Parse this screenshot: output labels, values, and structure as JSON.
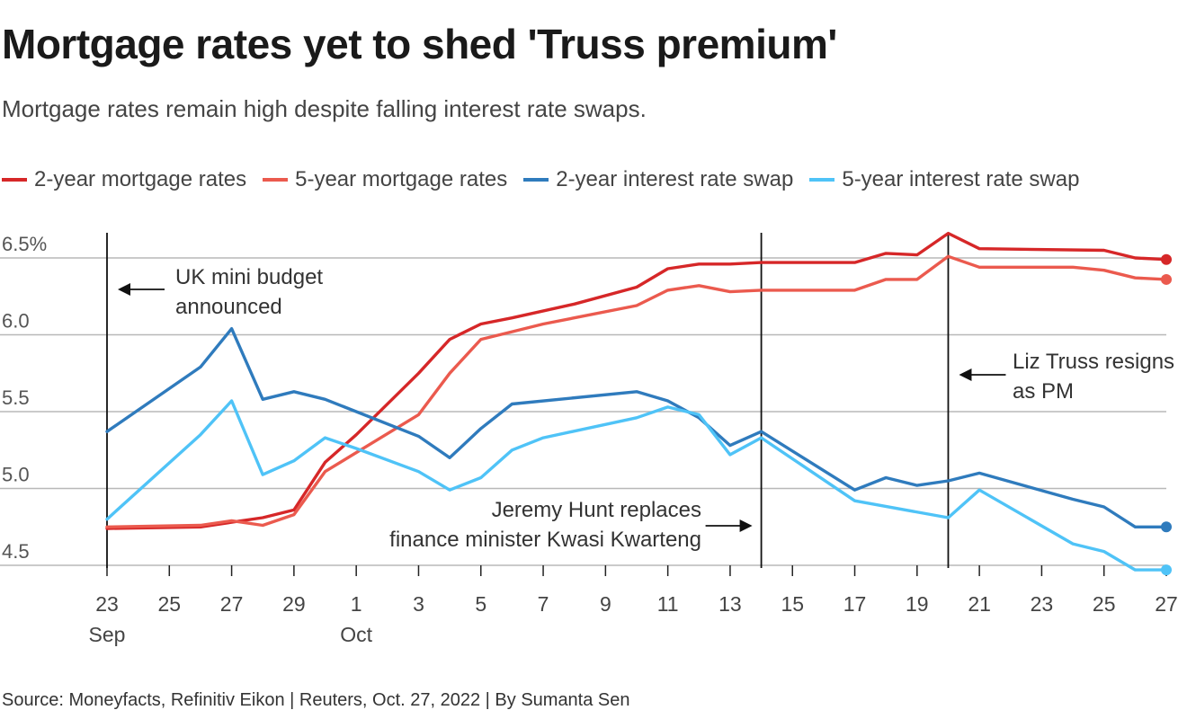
{
  "header": {
    "title": "Mortgage rates yet to shed 'Truss premium'",
    "subtitle": "Mortgage rates remain high despite falling interest rate swaps."
  },
  "footer": {
    "source": "Source: Moneyfacts, Refinitiv Eikon | Reuters, Oct. 27, 2022 | By Sumanta Sen"
  },
  "chart_data": {
    "type": "line",
    "title": "Mortgage rates yet to shed 'Truss premium'",
    "xlabel": "",
    "ylabel": "",
    "ylim": [
      4.5,
      6.5
    ],
    "xlim": [
      0,
      34
    ],
    "x_index_note": "0 = Sep 23, 2022 ... 34 = Oct 27, 2022",
    "y_ticks": [
      {
        "value": 4.5,
        "label": "4.5"
      },
      {
        "value": 5.0,
        "label": "5.0"
      },
      {
        "value": 5.5,
        "label": "5.5"
      },
      {
        "value": 6.0,
        "label": "6.0"
      },
      {
        "value": 6.5,
        "label": "6.5%"
      }
    ],
    "x_ticks": [
      {
        "x": 0,
        "label": "23",
        "sub": "Sep"
      },
      {
        "x": 2,
        "label": "25"
      },
      {
        "x": 4,
        "label": "27"
      },
      {
        "x": 6,
        "label": "29"
      },
      {
        "x": 8,
        "label": "1",
        "sub": "Oct"
      },
      {
        "x": 10,
        "label": "3"
      },
      {
        "x": 12,
        "label": "5"
      },
      {
        "x": 14,
        "label": "7"
      },
      {
        "x": 16,
        "label": "9"
      },
      {
        "x": 18,
        "label": "11"
      },
      {
        "x": 20,
        "label": "13"
      },
      {
        "x": 22,
        "label": "15"
      },
      {
        "x": 24,
        "label": "17"
      },
      {
        "x": 26,
        "label": "19"
      },
      {
        "x": 28,
        "label": "21"
      },
      {
        "x": 30,
        "label": "23"
      },
      {
        "x": 32,
        "label": "25"
      },
      {
        "x": 34,
        "label": "27"
      }
    ],
    "series": [
      {
        "name": "2-year mortgage rates",
        "color": "#d62728",
        "end_marker": true,
        "points": [
          [
            0,
            4.74
          ],
          [
            3,
            4.75
          ],
          [
            4,
            4.78
          ],
          [
            5,
            4.81
          ],
          [
            6,
            4.86
          ],
          [
            7,
            5.17
          ],
          [
            8,
            5.35
          ],
          [
            10,
            5.75
          ],
          [
            11,
            5.97
          ],
          [
            12,
            6.07
          ],
          [
            13,
            6.11
          ],
          [
            15,
            6.2
          ],
          [
            17,
            6.31
          ],
          [
            18,
            6.43
          ],
          [
            19,
            6.46
          ],
          [
            20,
            6.46
          ],
          [
            21,
            6.47
          ],
          [
            24,
            6.47
          ],
          [
            25,
            6.53
          ],
          [
            26,
            6.52
          ],
          [
            27,
            6.66
          ],
          [
            28,
            6.56
          ],
          [
            32,
            6.55
          ],
          [
            33,
            6.5
          ],
          [
            34,
            6.49
          ]
        ]
      },
      {
        "name": "5-year mortgage rates",
        "color": "#eb5a4e",
        "end_marker": true,
        "points": [
          [
            0,
            4.75
          ],
          [
            3,
            4.76
          ],
          [
            4,
            4.79
          ],
          [
            5,
            4.76
          ],
          [
            6,
            4.83
          ],
          [
            7,
            5.11
          ],
          [
            10,
            5.48
          ],
          [
            11,
            5.75
          ],
          [
            12,
            5.97
          ],
          [
            13,
            6.02
          ],
          [
            14,
            6.07
          ],
          [
            17,
            6.19
          ],
          [
            18,
            6.29
          ],
          [
            19,
            6.32
          ],
          [
            20,
            6.28
          ],
          [
            21,
            6.29
          ],
          [
            24,
            6.29
          ],
          [
            25,
            6.36
          ],
          [
            26,
            6.36
          ],
          [
            27,
            6.51
          ],
          [
            28,
            6.44
          ],
          [
            31,
            6.44
          ],
          [
            32,
            6.42
          ],
          [
            33,
            6.37
          ],
          [
            34,
            6.36
          ]
        ]
      },
      {
        "name": "2-year interest rate swap",
        "color": "#2f7bbd",
        "end_marker": true,
        "points": [
          [
            0,
            5.37
          ],
          [
            3,
            5.79
          ],
          [
            4,
            6.04
          ],
          [
            5,
            5.58
          ],
          [
            6,
            5.63
          ],
          [
            7,
            5.58
          ],
          [
            10,
            5.34
          ],
          [
            11,
            5.2
          ],
          [
            12,
            5.39
          ],
          [
            13,
            5.55
          ],
          [
            17,
            5.63
          ],
          [
            18,
            5.57
          ],
          [
            19,
            5.46
          ],
          [
            20,
            5.28
          ],
          [
            21,
            5.37
          ],
          [
            24,
            4.99
          ],
          [
            25,
            5.07
          ],
          [
            26,
            5.02
          ],
          [
            27,
            5.05
          ],
          [
            28,
            5.1
          ],
          [
            31,
            4.93
          ],
          [
            32,
            4.88
          ],
          [
            33,
            4.75
          ],
          [
            34,
            4.75
          ]
        ]
      },
      {
        "name": "5-year interest rate swap",
        "color": "#4fc3f7",
        "end_marker": true,
        "points": [
          [
            0,
            4.8
          ],
          [
            3,
            5.35
          ],
          [
            4,
            5.57
          ],
          [
            5,
            5.09
          ],
          [
            6,
            5.18
          ],
          [
            7,
            5.33
          ],
          [
            8,
            5.26
          ],
          [
            10,
            5.11
          ],
          [
            11,
            4.99
          ],
          [
            12,
            5.07
          ],
          [
            13,
            5.25
          ],
          [
            14,
            5.33
          ],
          [
            17,
            5.46
          ],
          [
            18,
            5.53
          ],
          [
            19,
            5.48
          ],
          [
            20,
            5.22
          ],
          [
            21,
            5.33
          ],
          [
            24,
            4.92
          ],
          [
            27,
            4.81
          ],
          [
            28,
            4.99
          ],
          [
            31,
            4.64
          ],
          [
            32,
            4.59
          ],
          [
            33,
            4.47
          ],
          [
            34,
            4.47
          ]
        ]
      }
    ],
    "annotations": [
      {
        "x": 0,
        "lines": [
          "UK mini budget",
          "announced"
        ],
        "side": "right"
      },
      {
        "x": 21,
        "lines": [
          "Jeremy Hunt replaces",
          "finance minister Kwasi Kwarteng"
        ],
        "side": "left"
      },
      {
        "x": 27,
        "lines": [
          "Liz Truss resigns",
          "as PM"
        ],
        "side": "right"
      }
    ]
  }
}
